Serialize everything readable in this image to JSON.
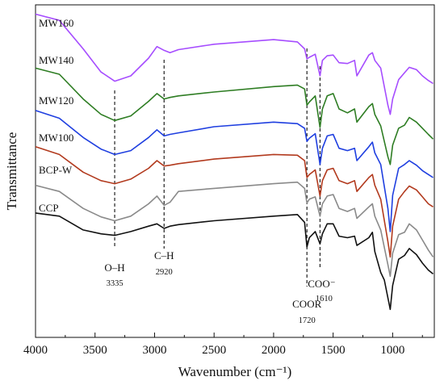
{
  "chart_data": {
    "type": "line",
    "xlabel": "Wavenumber (cm⁻¹)",
    "ylabel": "Transmittance",
    "xlim": [
      4000,
      650
    ],
    "x_reversed": true,
    "x_ticks": [
      "4000",
      "3500",
      "3000",
      "2500",
      "2000",
      "1500",
      "1000"
    ],
    "grid": false,
    "legend": "none",
    "series": [
      {
        "name": "MW160",
        "color": "#a64dff",
        "points": [
          [
            4000,
            10
          ],
          [
            3800,
            18
          ],
          [
            3600,
            55
          ],
          [
            3450,
            85
          ],
          [
            3335,
            97
          ],
          [
            3200,
            90
          ],
          [
            3050,
            67
          ],
          [
            2980,
            52
          ],
          [
            2920,
            57
          ],
          [
            2870,
            60
          ],
          [
            2800,
            56
          ],
          [
            2500,
            49
          ],
          [
            2000,
            43
          ],
          [
            1800,
            46
          ],
          [
            1740,
            55
          ],
          [
            1720,
            68
          ],
          [
            1700,
            66
          ],
          [
            1650,
            62
          ],
          [
            1610,
            90
          ],
          [
            1590,
            70
          ],
          [
            1550,
            64
          ],
          [
            1500,
            63
          ],
          [
            1450,
            73
          ],
          [
            1380,
            74
          ],
          [
            1320,
            70
          ],
          [
            1300,
            90
          ],
          [
            1200,
            63
          ],
          [
            1170,
            60
          ],
          [
            1150,
            70
          ],
          [
            1100,
            80
          ],
          [
            1040,
            128
          ],
          [
            1020,
            140
          ],
          [
            1000,
            120
          ],
          [
            950,
            95
          ],
          [
            900,
            86
          ],
          [
            860,
            79
          ],
          [
            800,
            82
          ],
          [
            750,
            90
          ],
          [
            700,
            96
          ],
          [
            660,
            100
          ]
        ]
      },
      {
        "name": "MW140",
        "color": "#2e7d23",
        "points": [
          [
            4000,
            80
          ],
          [
            3800,
            88
          ],
          [
            3600,
            120
          ],
          [
            3450,
            140
          ],
          [
            3335,
            148
          ],
          [
            3200,
            142
          ],
          [
            3050,
            123
          ],
          [
            2980,
            113
          ],
          [
            2920,
            120
          ],
          [
            2870,
            118
          ],
          [
            2800,
            116
          ],
          [
            2500,
            111
          ],
          [
            2000,
            104
          ],
          [
            1800,
            102
          ],
          [
            1740,
            107
          ],
          [
            1720,
            128
          ],
          [
            1700,
            124
          ],
          [
            1650,
            116
          ],
          [
            1610,
            157
          ],
          [
            1590,
            133
          ],
          [
            1550,
            116
          ],
          [
            1500,
            113
          ],
          [
            1450,
            133
          ],
          [
            1380,
            138
          ],
          [
            1320,
            133
          ],
          [
            1300,
            150
          ],
          [
            1200,
            130
          ],
          [
            1170,
            126
          ],
          [
            1150,
            140
          ],
          [
            1100,
            155
          ],
          [
            1040,
            195
          ],
          [
            1020,
            205
          ],
          [
            1000,
            180
          ],
          [
            950,
            158
          ],
          [
            900,
            154
          ],
          [
            860,
            144
          ],
          [
            800,
            150
          ],
          [
            750,
            158
          ],
          [
            700,
            166
          ],
          [
            660,
            172
          ]
        ]
      },
      {
        "name": "MW120",
        "color": "#1f3fe0",
        "points": [
          [
            4000,
            135
          ],
          [
            3800,
            145
          ],
          [
            3600,
            170
          ],
          [
            3450,
            185
          ],
          [
            3335,
            192
          ],
          [
            3200,
            187
          ],
          [
            3050,
            170
          ],
          [
            2980,
            160
          ],
          [
            2920,
            168
          ],
          [
            2870,
            166
          ],
          [
            2800,
            164
          ],
          [
            2500,
            156
          ],
          [
            2000,
            150
          ],
          [
            1800,
            152
          ],
          [
            1740,
            158
          ],
          [
            1720,
            175
          ],
          [
            1700,
            171
          ],
          [
            1650,
            165
          ],
          [
            1610,
            205
          ],
          [
            1590,
            184
          ],
          [
            1550,
            168
          ],
          [
            1500,
            166
          ],
          [
            1450,
            184
          ],
          [
            1380,
            187
          ],
          [
            1320,
            184
          ],
          [
            1300,
            200
          ],
          [
            1200,
            182
          ],
          [
            1170,
            176
          ],
          [
            1150,
            190
          ],
          [
            1100,
            205
          ],
          [
            1040,
            262
          ],
          [
            1020,
            292
          ],
          [
            1000,
            245
          ],
          [
            950,
            210
          ],
          [
            900,
            205
          ],
          [
            860,
            200
          ],
          [
            800,
            206
          ],
          [
            750,
            213
          ],
          [
            700,
            218
          ],
          [
            660,
            222
          ]
        ]
      },
      {
        "name": "MW100",
        "color": "#b23a1e",
        "points": [
          [
            4000,
            182
          ],
          [
            3800,
            192
          ],
          [
            3600,
            215
          ],
          [
            3450,
            226
          ],
          [
            3335,
            230
          ],
          [
            3200,
            224
          ],
          [
            3050,
            210
          ],
          [
            2980,
            200
          ],
          [
            2920,
            207
          ],
          [
            2870,
            206
          ],
          [
            2800,
            204
          ],
          [
            2500,
            198
          ],
          [
            2000,
            192
          ],
          [
            1800,
            193
          ],
          [
            1740,
            200
          ],
          [
            1720,
            222
          ],
          [
            1700,
            218
          ],
          [
            1650,
            212
          ],
          [
            1610,
            246
          ],
          [
            1590,
            226
          ],
          [
            1550,
            212
          ],
          [
            1500,
            210
          ],
          [
            1450,
            226
          ],
          [
            1380,
            230
          ],
          [
            1320,
            226
          ],
          [
            1300,
            240
          ],
          [
            1200,
            222
          ],
          [
            1170,
            218
          ],
          [
            1150,
            232
          ],
          [
            1100,
            250
          ],
          [
            1040,
            305
          ],
          [
            1020,
            325
          ],
          [
            1000,
            285
          ],
          [
            950,
            250
          ],
          [
            900,
            240
          ],
          [
            860,
            233
          ],
          [
            800,
            238
          ],
          [
            750,
            247
          ],
          [
            700,
            256
          ],
          [
            660,
            260
          ]
        ]
      },
      {
        "name": "BCP-W",
        "color": "#8a8a8a",
        "points": [
          [
            4000,
            232
          ],
          [
            3800,
            240
          ],
          [
            3600,
            262
          ],
          [
            3450,
            273
          ],
          [
            3335,
            278
          ],
          [
            3200,
            272
          ],
          [
            3050,
            256
          ],
          [
            2980,
            246
          ],
          [
            2920,
            258
          ],
          [
            2870,
            254
          ],
          [
            2800,
            240
          ],
          [
            2500,
            236
          ],
          [
            2000,
            230
          ],
          [
            1800,
            228
          ],
          [
            1740,
            236
          ],
          [
            1720,
            255
          ],
          [
            1700,
            250
          ],
          [
            1650,
            247
          ],
          [
            1610,
            272
          ],
          [
            1590,
            256
          ],
          [
            1550,
            246
          ],
          [
            1500,
            244
          ],
          [
            1450,
            262
          ],
          [
            1380,
            266
          ],
          [
            1320,
            262
          ],
          [
            1300,
            275
          ],
          [
            1200,
            260
          ],
          [
            1170,
            256
          ],
          [
            1150,
            272
          ],
          [
            1100,
            290
          ],
          [
            1040,
            335
          ],
          [
            1020,
            350
          ],
          [
            1000,
            320
          ],
          [
            950,
            296
          ],
          [
            900,
            293
          ],
          [
            860,
            282
          ],
          [
            800,
            290
          ],
          [
            750,
            303
          ],
          [
            700,
            316
          ],
          [
            660,
            325
          ]
        ]
      },
      {
        "name": "CCP",
        "color": "#111111",
        "points": [
          [
            4000,
            268
          ],
          [
            3800,
            272
          ],
          [
            3600,
            290
          ],
          [
            3450,
            295
          ],
          [
            3335,
            297
          ],
          [
            3200,
            292
          ],
          [
            3050,
            285
          ],
          [
            2980,
            282
          ],
          [
            2920,
            288
          ],
          [
            2870,
            285
          ],
          [
            2800,
            283
          ],
          [
            2500,
            278
          ],
          [
            2000,
            272
          ],
          [
            1800,
            270
          ],
          [
            1740,
            280
          ],
          [
            1720,
            312
          ],
          [
            1700,
            300
          ],
          [
            1650,
            292
          ],
          [
            1610,
            308
          ],
          [
            1590,
            295
          ],
          [
            1550,
            282
          ],
          [
            1500,
            282
          ],
          [
            1450,
            298
          ],
          [
            1380,
            300
          ],
          [
            1320,
            298
          ],
          [
            1300,
            310
          ],
          [
            1200,
            300
          ],
          [
            1170,
            293
          ],
          [
            1150,
            318
          ],
          [
            1100,
            345
          ],
          [
            1070,
            355
          ],
          [
            1040,
            378
          ],
          [
            1020,
            393
          ],
          [
            1000,
            362
          ],
          [
            950,
            328
          ],
          [
            900,
            323
          ],
          [
            860,
            314
          ],
          [
            800,
            322
          ],
          [
            750,
            333
          ],
          [
            700,
            342
          ],
          [
            660,
            347
          ]
        ]
      }
    ],
    "reference_lines": [
      {
        "x": 3335,
        "label": "O–H",
        "sublabel": "3335"
      },
      {
        "x": 2920,
        "label": "C–H",
        "sublabel": "2920"
      },
      {
        "x": 1720,
        "label": "COOR",
        "sublabel": "1720"
      },
      {
        "x": 1610,
        "label": "COO⁻",
        "sublabel": "1610"
      }
    ]
  }
}
